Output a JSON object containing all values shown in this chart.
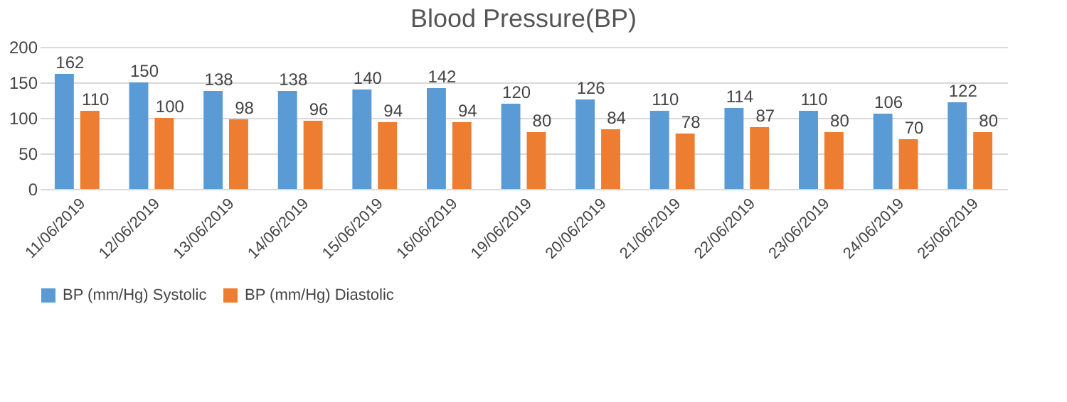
{
  "chart_data": {
    "type": "bar",
    "title": "Blood Pressure(BP)",
    "categories": [
      "11/06/2019",
      "12/06/2019",
      "13/06/2019",
      "14/06/2019",
      "15/06/2019",
      "16/06/2019",
      "19/06/2019",
      "20/06/2019",
      "21/06/2019",
      "22/06/2019",
      "23/06/2019",
      "24/06/2019",
      "25/06/2019"
    ],
    "series": [
      {
        "name": "BP (mm/Hg) Systolic",
        "color": "#5b9bd5",
        "values": [
          162,
          150,
          138,
          138,
          140,
          142,
          120,
          126,
          110,
          114,
          110,
          106,
          122
        ]
      },
      {
        "name": "BP (mm/Hg) Diastolic",
        "color": "#ed7d31",
        "values": [
          110,
          100,
          98,
          96,
          94,
          94,
          80,
          84,
          78,
          87,
          80,
          70,
          80
        ]
      }
    ],
    "ylim": [
      0,
      200
    ],
    "yticks": [
      0,
      50,
      100,
      150,
      200
    ],
    "grid": "y",
    "legend": "bottom",
    "data_labels": true
  }
}
